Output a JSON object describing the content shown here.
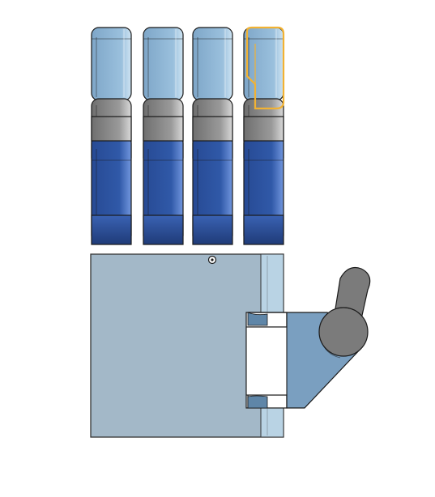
{
  "viewport": {
    "background": "#ffffff"
  },
  "model": {
    "fingers": [
      {
        "name": "finger-1",
        "selected_segment": null
      },
      {
        "name": "finger-2",
        "selected_segment": null
      },
      {
        "name": "finger-3",
        "selected_segment": null
      },
      {
        "name": "finger-4",
        "selected_segment": "distal"
      }
    ],
    "colors": {
      "distal_light_blue": "#8fb7d6",
      "distal_highlight": "#c4dcef",
      "middle_gray": "#8c8c8c",
      "middle_gray_light": "#c8c8c8",
      "proximal_blue": "#2f55a3",
      "proximal_blue_light": "#6a8fd8",
      "proximal_blue_dark": "#213e7c",
      "palm_fill": "#a3b8c8",
      "palm_stroke": "#333333",
      "thumb_mount": "#7a9fc0",
      "thumb_gray": "#7b7b7b",
      "selection_outline": "#f2b233",
      "outline": "#1a1a1a"
    },
    "icons": {
      "palm_hole": "circle-hole-icon"
    }
  }
}
